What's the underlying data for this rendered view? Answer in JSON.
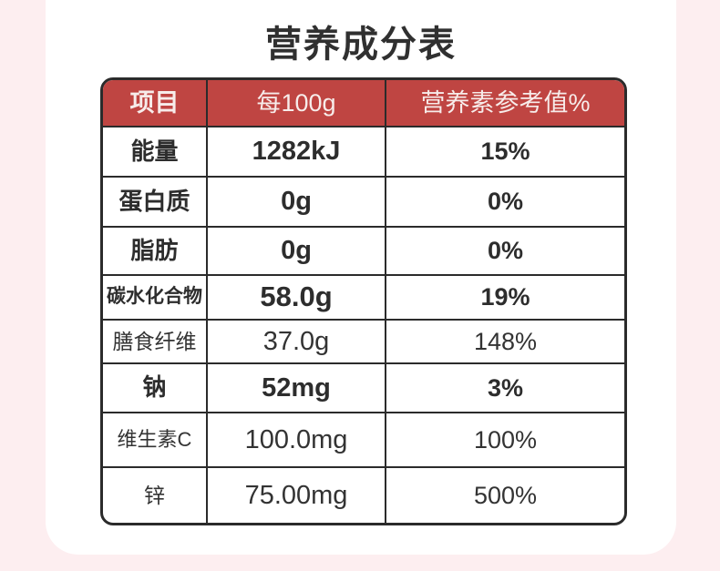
{
  "title": "营养成分表",
  "table": {
    "headers": [
      "项目",
      "每100g",
      "营养素参考值%"
    ],
    "rows": [
      {
        "item": "能量",
        "per100g": "1282kJ",
        "nrv": "15%"
      },
      {
        "item": "蛋白质",
        "per100g": "0g",
        "nrv": "0%"
      },
      {
        "item": "脂肪",
        "per100g": "0g",
        "nrv": "0%"
      },
      {
        "item": "碳水化合物",
        "per100g": "58.0g",
        "nrv": "19%"
      },
      {
        "item": "膳食纤维",
        "per100g": "37.0g",
        "nrv": "148%"
      },
      {
        "item": "钠",
        "per100g": "52mg",
        "nrv": "3%"
      },
      {
        "item": "维生素C",
        "per100g": "100.0mg",
        "nrv": "100%"
      },
      {
        "item": "锌",
        "per100g": "75.00mg",
        "nrv": "500%"
      }
    ]
  },
  "colors": {
    "page_background": "#fdeef0",
    "panel_background": "#ffffff",
    "header_background": "#bf4542",
    "header_text": "#f7ecea",
    "grid_border": "#2b2b2b",
    "body_text": "#2d2d2d"
  }
}
